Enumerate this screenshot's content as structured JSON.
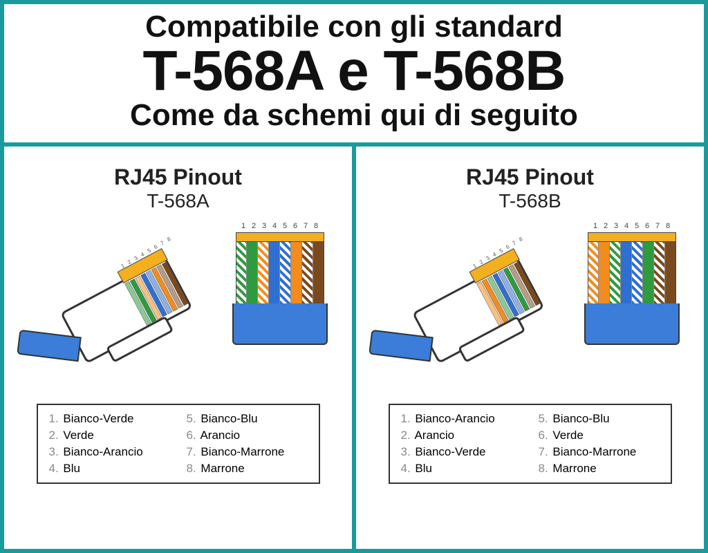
{
  "colors": {
    "frame": "#1a9b9b",
    "cable_blue": "#3b7dd8",
    "gold": "#f2b01e",
    "wire_orange": "#f28c1e",
    "wire_green": "#2e9b3e",
    "wire_blue": "#2f6fd0",
    "wire_brown": "#7a4a1e"
  },
  "header": {
    "line1": "Compatibile con gli standard",
    "line2": "T-568A e T-568B",
    "line3": "Come da schemi qui di seguito"
  },
  "pin_numbers": [
    "1",
    "2",
    "3",
    "4",
    "5",
    "6",
    "7",
    "8"
  ],
  "panels": [
    {
      "title": "RJ45 Pinout",
      "subtitle": "T-568A",
      "wires": [
        {
          "pin": 1,
          "type": "striped",
          "color": "#2e9b3e"
        },
        {
          "pin": 2,
          "type": "solid",
          "color": "#2e9b3e"
        },
        {
          "pin": 3,
          "type": "striped",
          "color": "#f28c1e"
        },
        {
          "pin": 4,
          "type": "solid",
          "color": "#2f6fd0"
        },
        {
          "pin": 5,
          "type": "striped",
          "color": "#2f6fd0"
        },
        {
          "pin": 6,
          "type": "solid",
          "color": "#f28c1e"
        },
        {
          "pin": 7,
          "type": "striped",
          "color": "#7a4a1e"
        },
        {
          "pin": 8,
          "type": "solid",
          "color": "#7a4a1e"
        }
      ],
      "legend": [
        {
          "n": "1.",
          "label": "Bianco-Verde"
        },
        {
          "n": "2.",
          "label": "Verde"
        },
        {
          "n": "3.",
          "label": "Bianco-Arancio"
        },
        {
          "n": "4.",
          "label": "Blu"
        },
        {
          "n": "5.",
          "label": "Bianco-Blu"
        },
        {
          "n": "6.",
          "label": "Arancio"
        },
        {
          "n": "7.",
          "label": "Bianco-Marrone"
        },
        {
          "n": "8.",
          "label": "Marrone"
        }
      ]
    },
    {
      "title": "RJ45 Pinout",
      "subtitle": "T-568B",
      "wires": [
        {
          "pin": 1,
          "type": "striped",
          "color": "#f28c1e"
        },
        {
          "pin": 2,
          "type": "solid",
          "color": "#f28c1e"
        },
        {
          "pin": 3,
          "type": "striped",
          "color": "#2e9b3e"
        },
        {
          "pin": 4,
          "type": "solid",
          "color": "#2f6fd0"
        },
        {
          "pin": 5,
          "type": "striped",
          "color": "#2f6fd0"
        },
        {
          "pin": 6,
          "type": "solid",
          "color": "#2e9b3e"
        },
        {
          "pin": 7,
          "type": "striped",
          "color": "#7a4a1e"
        },
        {
          "pin": 8,
          "type": "solid",
          "color": "#7a4a1e"
        }
      ],
      "legend": [
        {
          "n": "1.",
          "label": "Bianco-Arancio"
        },
        {
          "n": "2.",
          "label": "Arancio"
        },
        {
          "n": "3.",
          "label": "Bianco-Verde"
        },
        {
          "n": "4.",
          "label": "Blu"
        },
        {
          "n": "5.",
          "label": "Bianco-Blu"
        },
        {
          "n": "6.",
          "label": "Verde"
        },
        {
          "n": "7.",
          "label": "Bianco-Marrone"
        },
        {
          "n": "8.",
          "label": "Marrone"
        }
      ]
    }
  ]
}
